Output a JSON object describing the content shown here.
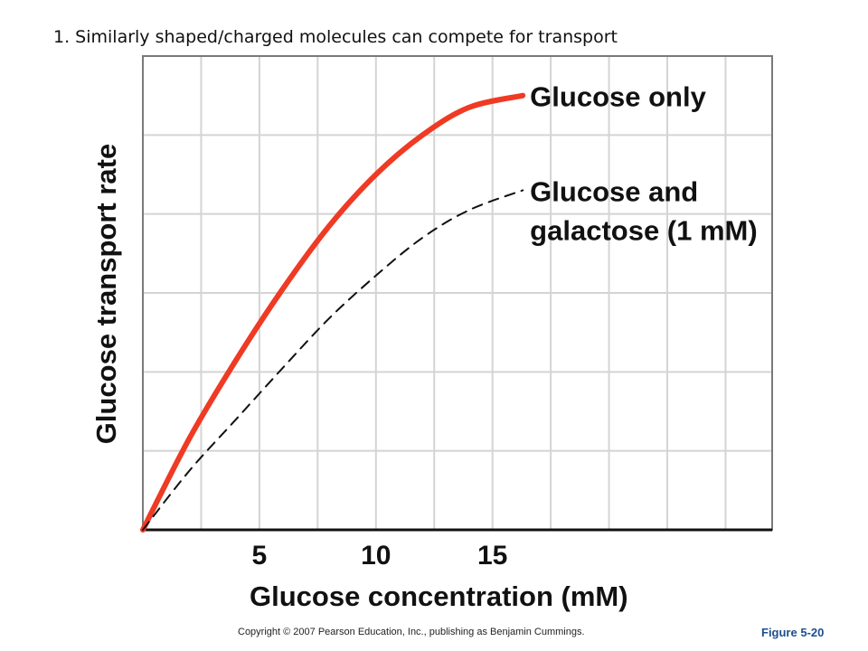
{
  "slide": {
    "title": "1. Similarly shaped/charged molecules can compete for transport",
    "copyright": "Copyright © 2007 Pearson Education, Inc., publishing as Benjamin Cummings.",
    "figure_label": "Figure 5-20"
  },
  "chart_data": {
    "type": "line",
    "title": "",
    "xlabel": "Glucose concentration (mM)",
    "ylabel": "Glucose transport rate",
    "xlim": [
      0,
      27
    ],
    "ylim": [
      0,
      6
    ],
    "x_ticks": [
      5,
      10,
      15
    ],
    "grid": true,
    "colors": {
      "glucose_only": "#ef3a24",
      "glucose_and_galactose": "#111111",
      "grid": "#d4d4d4"
    },
    "series": [
      {
        "name": "Glucose only",
        "line_style": "solid",
        "label_lines": [
          "Glucose only"
        ],
        "x": [
          0,
          2,
          4,
          6,
          8,
          10,
          12,
          14,
          16.3
        ],
        "y": [
          0,
          1.16,
          2.15,
          3.05,
          3.85,
          4.5,
          5.0,
          5.35,
          5.5
        ]
      },
      {
        "name": "Glucose and galactose (1 mM)",
        "line_style": "dashed",
        "label_lines": [
          "Glucose and",
          "galactose (1 mM)"
        ],
        "x": [
          0,
          2,
          4,
          6,
          8,
          10,
          12,
          14,
          16.3
        ],
        "y": [
          0,
          0.75,
          1.4,
          2.05,
          2.68,
          3.22,
          3.7,
          4.05,
          4.3
        ]
      }
    ]
  }
}
